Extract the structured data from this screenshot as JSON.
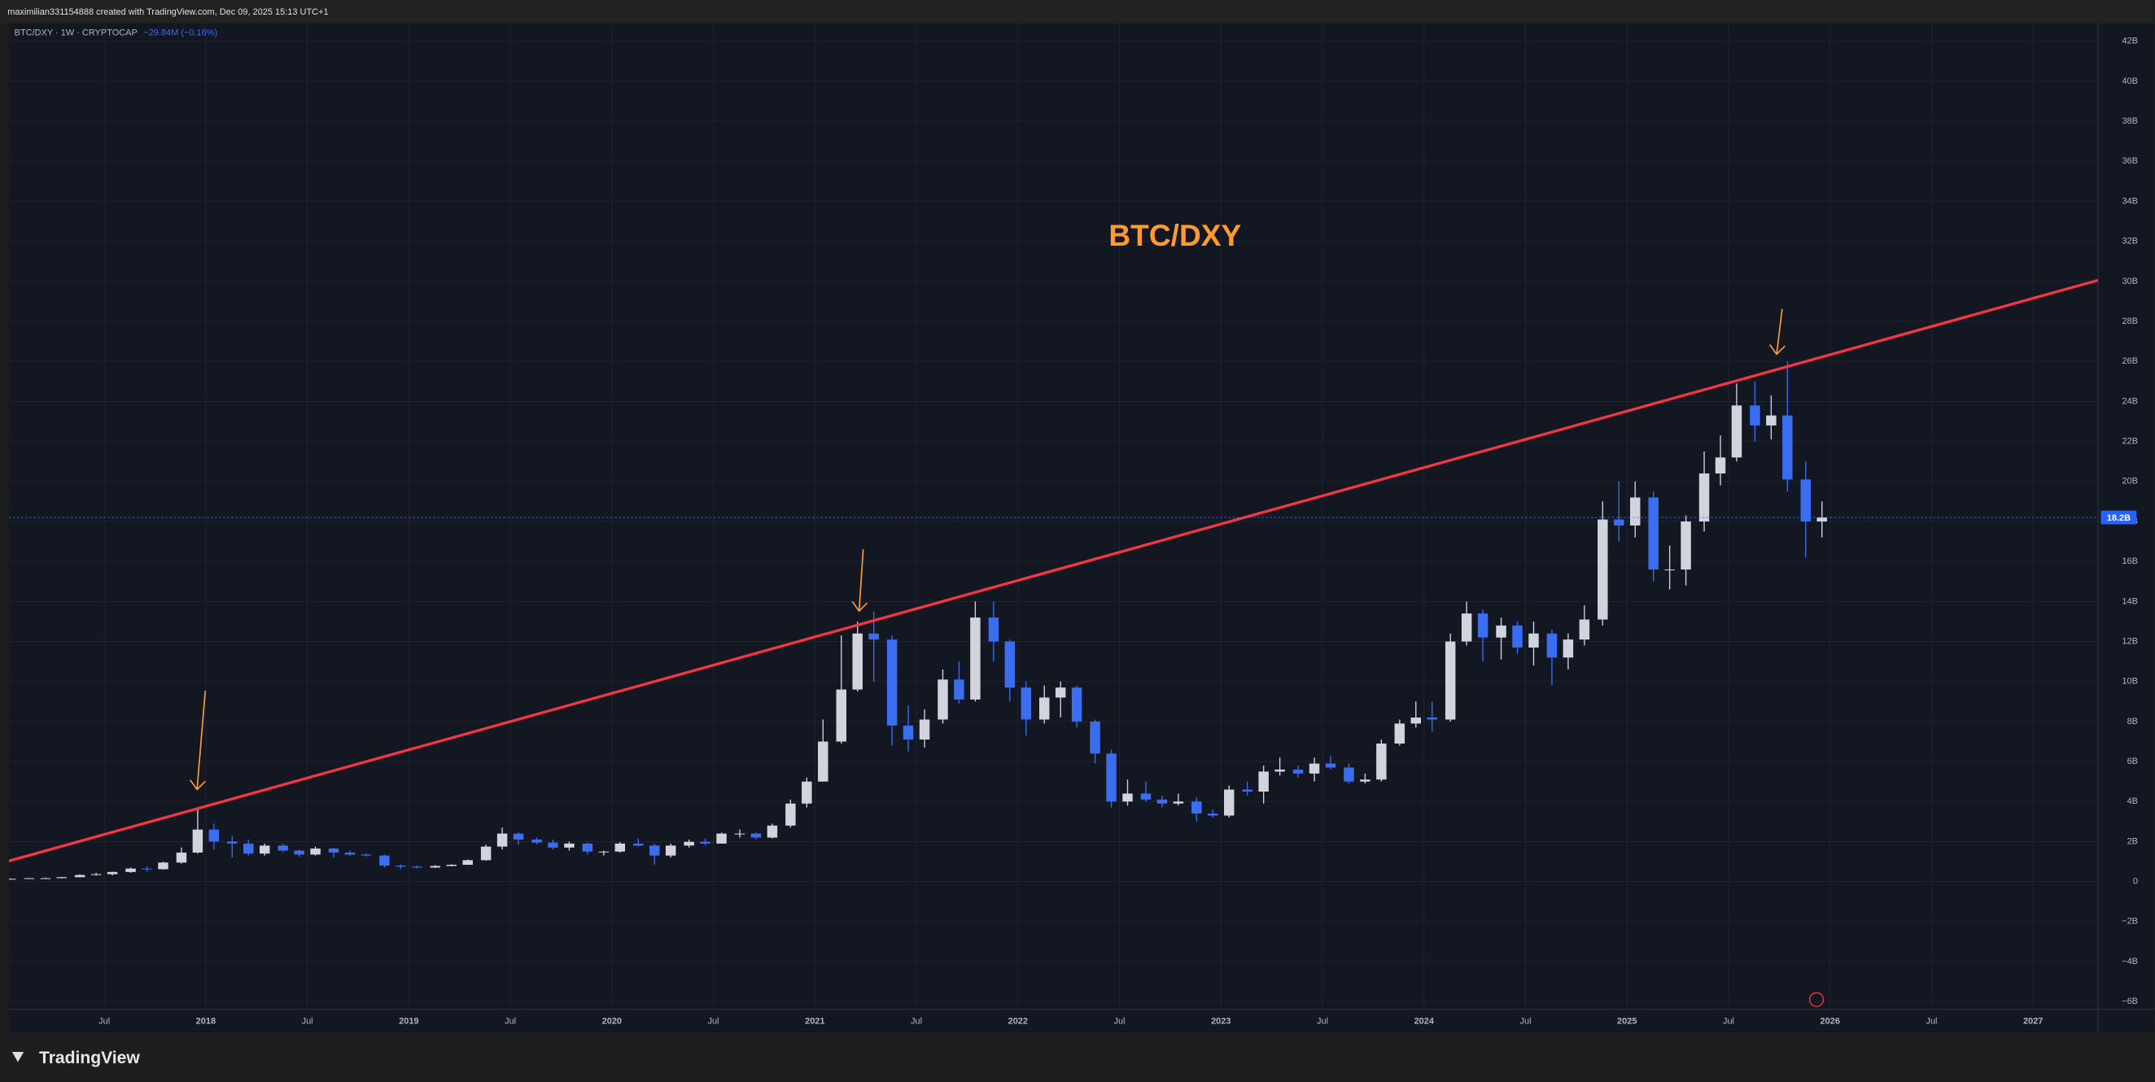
{
  "chart_data": {
    "type": "candlestick",
    "attribution": "maximilian331154888 created with TradingView.com, Dec 09, 2025 15:13 UTC+1",
    "legend_text": "BTC/DXY · 1W · CRYPTOCAP",
    "change_text": "−29.84M (−0.16%)",
    "title": "BTC/DXY",
    "brand": "TradingView",
    "up_color": "#d1d4dc",
    "down_color": "#3a6df0",
    "grid": true,
    "xlim": [
      2017.03,
      2027.32
    ],
    "ylim": [
      -6.38,
      42.9
    ],
    "xticks": [
      {
        "value": 2017.5,
        "label": "Jul"
      },
      2018,
      {
        "value": 2018.5,
        "label": "Jul"
      },
      2019,
      {
        "value": 2019.5,
        "label": "Jul"
      },
      2020,
      {
        "value": 2020.5,
        "label": "Jul"
      },
      2021,
      {
        "value": 2021.5,
        "label": "Jul"
      },
      2022,
      {
        "value": 2022.5,
        "label": "Jul"
      },
      2023,
      {
        "value": 2023.5,
        "label": "Jul"
      },
      2024,
      {
        "value": 2024.5,
        "label": "Jul"
      },
      2025,
      {
        "value": 2025.5,
        "label": "Jul"
      },
      2026,
      {
        "value": 2026.5,
        "label": "Jul"
      },
      2027
    ],
    "yticks": [
      {
        "value": 42,
        "label": "42B"
      },
      {
        "value": 40,
        "label": "40B"
      },
      {
        "value": 38,
        "label": "38B"
      },
      {
        "value": 36,
        "label": "36B"
      },
      {
        "value": 34,
        "label": "34B"
      },
      {
        "value": 32,
        "label": "32B"
      },
      {
        "value": 30,
        "label": "30B"
      },
      {
        "value": 28,
        "label": "28B"
      },
      {
        "value": 26,
        "label": "26B"
      },
      {
        "value": 24,
        "label": "24B"
      },
      {
        "value": 22,
        "label": "22B"
      },
      {
        "value": 20,
        "label": "20B"
      },
      {
        "value": 18,
        "label": "18B"
      },
      {
        "value": 16,
        "label": "16B"
      },
      {
        "value": 14,
        "label": "14B"
      },
      {
        "value": 12,
        "label": "12B"
      },
      {
        "value": 10,
        "label": "10B"
      },
      {
        "value": 8,
        "label": "8B"
      },
      {
        "value": 6,
        "label": "6B"
      },
      {
        "value": 4,
        "label": "4B"
      },
      {
        "value": 2,
        "label": "2B"
      },
      0,
      {
        "value": -2,
        "label": "−2B"
      },
      {
        "value": -4,
        "label": "−4B"
      },
      {
        "value": -6,
        "label": "−6B"
      }
    ],
    "last_price": {
      "value": 18.2,
      "label": "18.2B"
    },
    "trendline": {
      "color": "#f23645",
      "x": [
        2017.03,
        2027.32
      ],
      "values": [
        1.03,
        30.06
      ]
    },
    "x": [
      2017.04,
      2017.13,
      2017.21,
      2017.29,
      2017.38,
      2017.46,
      2017.54,
      2017.63,
      2017.71,
      2017.79,
      2017.88,
      2017.96,
      2018.04,
      2018.13,
      2018.21,
      2018.29,
      2018.38,
      2018.46,
      2018.54,
      2018.63,
      2018.71,
      2018.79,
      2018.88,
      2018.96,
      2019.04,
      2019.13,
      2019.21,
      2019.29,
      2019.38,
      2019.46,
      2019.54,
      2019.63,
      2019.71,
      2019.79,
      2019.88,
      2019.96,
      2020.04,
      2020.13,
      2020.21,
      2020.29,
      2020.38,
      2020.46,
      2020.54,
      2020.63,
      2020.71,
      2020.79,
      2020.88,
      2020.96,
      2021.04,
      2021.13,
      2021.21,
      2021.29,
      2021.38,
      2021.46,
      2021.54,
      2021.63,
      2021.71,
      2021.79,
      2021.88,
      2021.96,
      2022.04,
      2022.13,
      2022.21,
      2022.29,
      2022.38,
      2022.46,
      2022.54,
      2022.63,
      2022.71,
      2022.79,
      2022.88,
      2022.96,
      2023.04,
      2023.13,
      2023.21,
      2023.29,
      2023.38,
      2023.46,
      2023.54,
      2023.63,
      2023.71,
      2023.79,
      2023.88,
      2023.96,
      2024.04,
      2024.13,
      2024.21,
      2024.29,
      2024.38,
      2024.46,
      2024.54,
      2024.63,
      2024.71,
      2024.79,
      2024.88,
      2024.96,
      2025.04,
      2025.13,
      2025.21,
      2025.29,
      2025.38,
      2025.46,
      2025.54,
      2025.63,
      2025.71,
      2025.79,
      2025.88,
      2025.96
    ],
    "open": [
      0.12,
      0.14,
      0.17,
      0.17,
      0.22,
      0.33,
      0.37,
      0.48,
      0.65,
      0.62,
      0.95,
      1.45,
      2.6,
      2.0,
      1.9,
      1.4,
      1.8,
      1.55,
      1.35,
      1.65,
      1.45,
      1.35,
      1.3,
      0.8,
      0.75,
      0.7,
      0.78,
      0.84,
      1.07,
      1.75,
      2.4,
      2.1,
      1.95,
      1.7,
      1.9,
      1.5,
      1.5,
      1.9,
      1.8,
      1.3,
      1.8,
      1.99,
      1.9,
      2.4,
      2.4,
      2.2,
      2.8,
      3.9,
      5.0,
      7.0,
      9.6,
      12.4,
      12.1,
      7.8,
      7.1,
      8.1,
      10.1,
      9.1,
      13.2,
      12.0,
      9.7,
      8.1,
      9.2,
      9.7,
      8.0,
      6.4,
      4.0,
      4.4,
      4.1,
      3.9,
      4.0,
      3.4,
      3.3,
      4.6,
      4.5,
      5.5,
      5.6,
      5.4,
      5.9,
      5.7,
      5.0,
      5.1,
      6.9,
      7.9,
      8.2,
      8.1,
      12.0,
      13.4,
      12.2,
      12.8,
      11.7,
      12.4,
      11.2,
      12.1,
      13.1,
      18.1,
      17.8,
      19.2,
      15.6,
      15.6,
      18.0,
      20.4,
      21.2,
      23.8,
      22.8,
      23.3,
      20.1,
      18.0
    ],
    "high": [
      0.16,
      0.18,
      0.2,
      0.23,
      0.36,
      0.44,
      0.5,
      0.7,
      0.76,
      1.0,
      1.7,
      3.6,
      2.9,
      2.3,
      2.1,
      1.9,
      1.9,
      1.6,
      1.75,
      1.7,
      1.55,
      1.42,
      1.35,
      0.85,
      0.8,
      0.82,
      0.87,
      1.1,
      1.85,
      2.7,
      2.45,
      2.2,
      2.1,
      2.0,
      1.95,
      1.55,
      1.98,
      2.15,
      1.9,
      1.9,
      2.1,
      2.15,
      2.45,
      2.6,
      2.45,
      2.9,
      4.1,
      5.2,
      8.1,
      12.3,
      13.0,
      13.5,
      12.3,
      8.8,
      8.6,
      10.6,
      11.0,
      14.0,
      14.0,
      12.1,
      10.0,
      9.8,
      10.0,
      9.8,
      8.1,
      6.6,
      5.1,
      5.0,
      4.3,
      4.4,
      4.2,
      3.6,
      4.8,
      5.0,
      5.8,
      6.2,
      5.8,
      6.2,
      6.3,
      5.9,
      5.4,
      7.1,
      8.1,
      9.0,
      9.0,
      12.4,
      14.0,
      13.6,
      13.2,
      13.0,
      13.0,
      12.6,
      12.4,
      13.8,
      19.0,
      20.0,
      20.0,
      19.5,
      16.8,
      18.3,
      21.5,
      22.3,
      24.9,
      25.0,
      24.3,
      26.0,
      21.0,
      19.0
    ],
    "low": [
      0.11,
      0.13,
      0.15,
      0.16,
      0.21,
      0.3,
      0.31,
      0.44,
      0.5,
      0.6,
      0.9,
      1.4,
      1.6,
      1.2,
      1.3,
      1.3,
      1.45,
      1.25,
      1.3,
      1.2,
      1.3,
      1.25,
      0.7,
      0.62,
      0.66,
      0.68,
      0.76,
      0.83,
      1.05,
      1.6,
      1.85,
      1.85,
      1.6,
      1.55,
      1.35,
      1.3,
      1.45,
      1.75,
      0.85,
      1.2,
      1.7,
      1.8,
      1.9,
      2.2,
      2.1,
      2.15,
      2.7,
      3.7,
      5.0,
      6.9,
      9.5,
      10.0,
      6.8,
      6.5,
      6.7,
      7.9,
      8.9,
      9.0,
      11.0,
      9.0,
      7.3,
      7.9,
      8.2,
      7.7,
      5.9,
      3.7,
      3.8,
      4.0,
      3.7,
      3.8,
      3.0,
      3.2,
      3.2,
      4.3,
      3.9,
      5.3,
      5.2,
      5.0,
      5.6,
      4.9,
      4.9,
      5.0,
      6.8,
      7.7,
      7.5,
      8.0,
      11.8,
      11.0,
      11.1,
      11.4,
      10.8,
      9.8,
      10.6,
      11.8,
      12.8,
      17.0,
      17.2,
      15.0,
      14.6,
      14.8,
      17.5,
      19.8,
      21.0,
      22.0,
      22.1,
      19.5,
      16.2,
      17.2
    ],
    "close": [
      0.14,
      0.17,
      0.17,
      0.22,
      0.33,
      0.37,
      0.48,
      0.65,
      0.62,
      0.95,
      1.45,
      2.6,
      2.0,
      1.9,
      1.4,
      1.8,
      1.55,
      1.35,
      1.65,
      1.45,
      1.35,
      1.3,
      0.8,
      0.75,
      0.7,
      0.78,
      0.84,
      1.07,
      1.75,
      2.4,
      2.1,
      1.95,
      1.7,
      1.9,
      1.5,
      1.5,
      1.9,
      1.8,
      1.3,
      1.8,
      1.99,
      1.9,
      2.4,
      2.4,
      2.2,
      2.8,
      3.9,
      5.0,
      7.0,
      9.6,
      12.4,
      12.1,
      7.8,
      7.1,
      8.1,
      10.1,
      9.1,
      13.2,
      12.0,
      9.7,
      8.1,
      9.2,
      9.7,
      8.0,
      6.4,
      4.0,
      4.4,
      4.1,
      3.9,
      4.0,
      3.4,
      3.3,
      4.6,
      4.5,
      5.5,
      5.6,
      5.4,
      5.9,
      5.7,
      5.0,
      5.1,
      6.9,
      7.9,
      8.2,
      8.1,
      12.0,
      13.4,
      12.2,
      12.8,
      11.7,
      12.4,
      11.2,
      12.1,
      13.1,
      18.1,
      17.8,
      19.2,
      15.6,
      15.6,
      18.0,
      20.4,
      21.2,
      23.8,
      22.8,
      23.3,
      20.1,
      18.0,
      18.2
    ]
  }
}
